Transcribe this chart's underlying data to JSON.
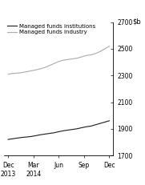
{
  "title": "",
  "xlabels": [
    "Dec\n2013",
    "Mar\n2014",
    "Jun",
    "Sep",
    "Dec"
  ],
  "xtick_positions": [
    0,
    1,
    2,
    3,
    4
  ],
  "institutions": [
    1820,
    1825,
    1830,
    1835,
    1838,
    1842,
    1848,
    1855,
    1860,
    1865,
    1870,
    1878,
    1885,
    1890,
    1895,
    1900,
    1908,
    1915,
    1920,
    1930,
    1940,
    1950,
    1960
  ],
  "industry": [
    2310,
    2315,
    2318,
    2322,
    2328,
    2335,
    2342,
    2350,
    2360,
    2375,
    2390,
    2405,
    2415,
    2420,
    2425,
    2430,
    2440,
    2450,
    2455,
    2465,
    2480,
    2500,
    2520
  ],
  "ylim": [
    1700,
    2700
  ],
  "yticks": [
    1700,
    1900,
    2100,
    2300,
    2500,
    2700
  ],
  "line_institutions_color": "#1a1a1a",
  "line_industry_color": "#aaaaaa",
  "legend_institutions": "Managed funds institutions",
  "legend_industry": "Managed funds industry",
  "background_color": "#ffffff",
  "linewidth": 0.8
}
